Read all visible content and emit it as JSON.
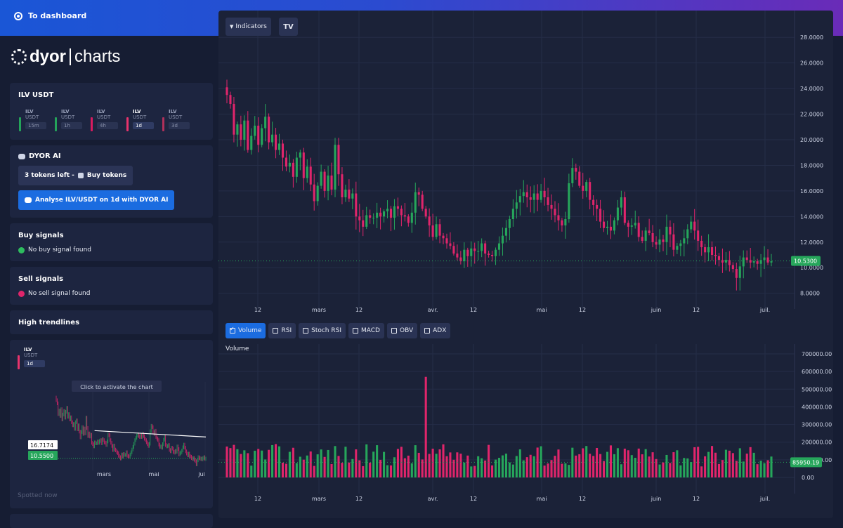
{
  "nav": {
    "back_label": "To dashboard"
  },
  "logo": {
    "part1": "dyor",
    "part2": "charts"
  },
  "pair_card": {
    "title": "ILV USDT",
    "pairs": [
      {
        "base": "ILV",
        "quote": "USDT",
        "tf": "15m",
        "color": "#24a35a"
      },
      {
        "base": "ILV",
        "quote": "USDT",
        "tf": "1h",
        "color": "#24a35a"
      },
      {
        "base": "ILV",
        "quote": "USDT",
        "tf": "4h",
        "color": "#d81b60"
      },
      {
        "base": "ILV",
        "quote": "USDT",
        "tf": "1d",
        "color": "#e8336c"
      },
      {
        "base": "ILV",
        "quote": "USDT",
        "tf": "3d",
        "color": "#b0305a"
      }
    ]
  },
  "ai": {
    "title": "DYOR AI",
    "tokens_label": "3 tokens left -",
    "buy_label": "Buy tokens",
    "analyse_label": "Analyse ILV/USDT on 1d with DYOR AI"
  },
  "buy_signals": {
    "title": "Buy signals",
    "status": "No buy signal found"
  },
  "sell_signals": {
    "title": "Sell signals",
    "status": "No sell signal found"
  },
  "trendlines": {
    "title": "High trendlines"
  },
  "mini": {
    "base": "ILV",
    "quote": "USDT",
    "tf": "1d",
    "overlay": "Click to activate the chart",
    "label_high": "16.7174",
    "label_last": "10.5500",
    "x_ticks": [
      "mars",
      "mai",
      "jui"
    ],
    "spotted": "Spotted now"
  },
  "toolbar": {
    "indicators_label": "Indicators",
    "tv_logo": "TV"
  },
  "indicators": [
    {
      "label": "Volume",
      "checked": true
    },
    {
      "label": "RSI",
      "checked": false
    },
    {
      "label": "Stoch RSI",
      "checked": false
    },
    {
      "label": "MACD",
      "checked": false
    },
    {
      "label": "OBV",
      "checked": false
    },
    {
      "label": "ADX",
      "checked": false
    }
  ],
  "volume_label": "Volume",
  "colors": {
    "up": "#26a65b",
    "down": "#e0256b",
    "accent": "#1b6ce0"
  },
  "chart_data": [
    {
      "type": "candlestick",
      "y_ticks": [
        "28.0000",
        "26.0000",
        "24.0000",
        "22.0000",
        "20.0000",
        "18.0000",
        "16.0000",
        "14.0000",
        "12.0000",
        "10.0000",
        "8.0000"
      ],
      "y_values": [
        28,
        26,
        24,
        22,
        20,
        18,
        16,
        14,
        12,
        10,
        8
      ],
      "ylim": [
        6.5,
        29
      ],
      "x_ticks": [
        "12",
        "mars",
        "12",
        "avr.",
        "12",
        "mai",
        "12",
        "juin",
        "12",
        "juil."
      ],
      "last_price": "10.5300",
      "close_series": [
        23.5,
        22.8,
        20.4,
        21.2,
        20.0,
        21.5,
        19.2,
        20.3,
        21.1,
        19.6,
        20.9,
        21.8,
        19.8,
        20.4,
        19.2,
        19.7,
        18.6,
        17.9,
        18.2,
        17.1,
        18.6,
        19.0,
        17.0,
        17.9,
        16.5,
        15.2,
        16.4,
        17.5,
        16.0,
        17.2,
        16.1,
        19.6,
        17.3,
        15.5,
        16.1,
        15.4,
        15.8,
        14.0,
        13.7,
        13.2,
        14.1,
        13.9,
        13.9,
        14.3,
        14.0,
        14.4,
        14.6,
        13.9,
        14.8,
        14.6,
        14.1,
        14.0,
        13.5,
        14.3,
        15.9,
        15.7,
        14.6,
        14.0,
        13.3,
        12.4,
        13.4,
        12.5,
        12.3,
        11.9,
        11.7,
        11.1,
        10.8,
        10.5,
        11.4,
        10.9,
        11.5,
        11.3,
        11.3,
        11.9,
        11.1,
        11.0,
        10.9,
        11.4,
        11.9,
        12.5,
        13.1,
        13.8,
        14.6,
        15.1,
        15.6,
        15.9,
        15.5,
        15.3,
        15.8,
        15.3,
        16.0,
        15.5,
        14.9,
        14.6,
        14.1,
        13.7,
        13.3,
        13.8,
        16.6,
        17.8,
        17.5,
        16.4,
        16.0,
        16.7,
        15.3,
        14.9,
        14.6,
        13.6,
        13.1,
        13.2,
        12.9,
        13.7,
        14.7,
        15.5,
        13.5,
        13.2,
        13.3,
        13.5,
        12.4,
        12.1,
        12.9,
        12.7,
        12.0,
        11.8,
        12.2,
        12.0,
        13.2,
        12.6,
        11.4,
        11.7,
        11.9,
        12.3,
        13.0,
        13.6,
        12.9,
        12.1,
        11.6,
        11.2,
        11.6,
        11.0,
        10.9,
        10.6,
        10.4,
        10.6,
        10.2,
        9.9,
        9.2,
        10.1,
        10.8,
        10.6,
        10.4,
        10.5,
        10.3,
        10.6,
        10.8,
        10.4,
        10.5
      ],
      "volume": {
        "y_ticks": [
          "700000.00",
          "600000.00",
          "500000.00",
          "400000.00",
          "300000.00",
          "200000.00",
          "100000.00",
          "0.00"
        ],
        "y_values": [
          700000,
          600000,
          500000,
          400000,
          300000,
          200000,
          100000,
          0
        ],
        "ylim": [
          0,
          720000
        ],
        "last_value": "85950.19",
        "spike_value": 570000
      }
    },
    {
      "type": "line",
      "name": "mini",
      "close_series_ref": 0,
      "trendline_start": 16.7174,
      "last_price": 10.55
    }
  ]
}
